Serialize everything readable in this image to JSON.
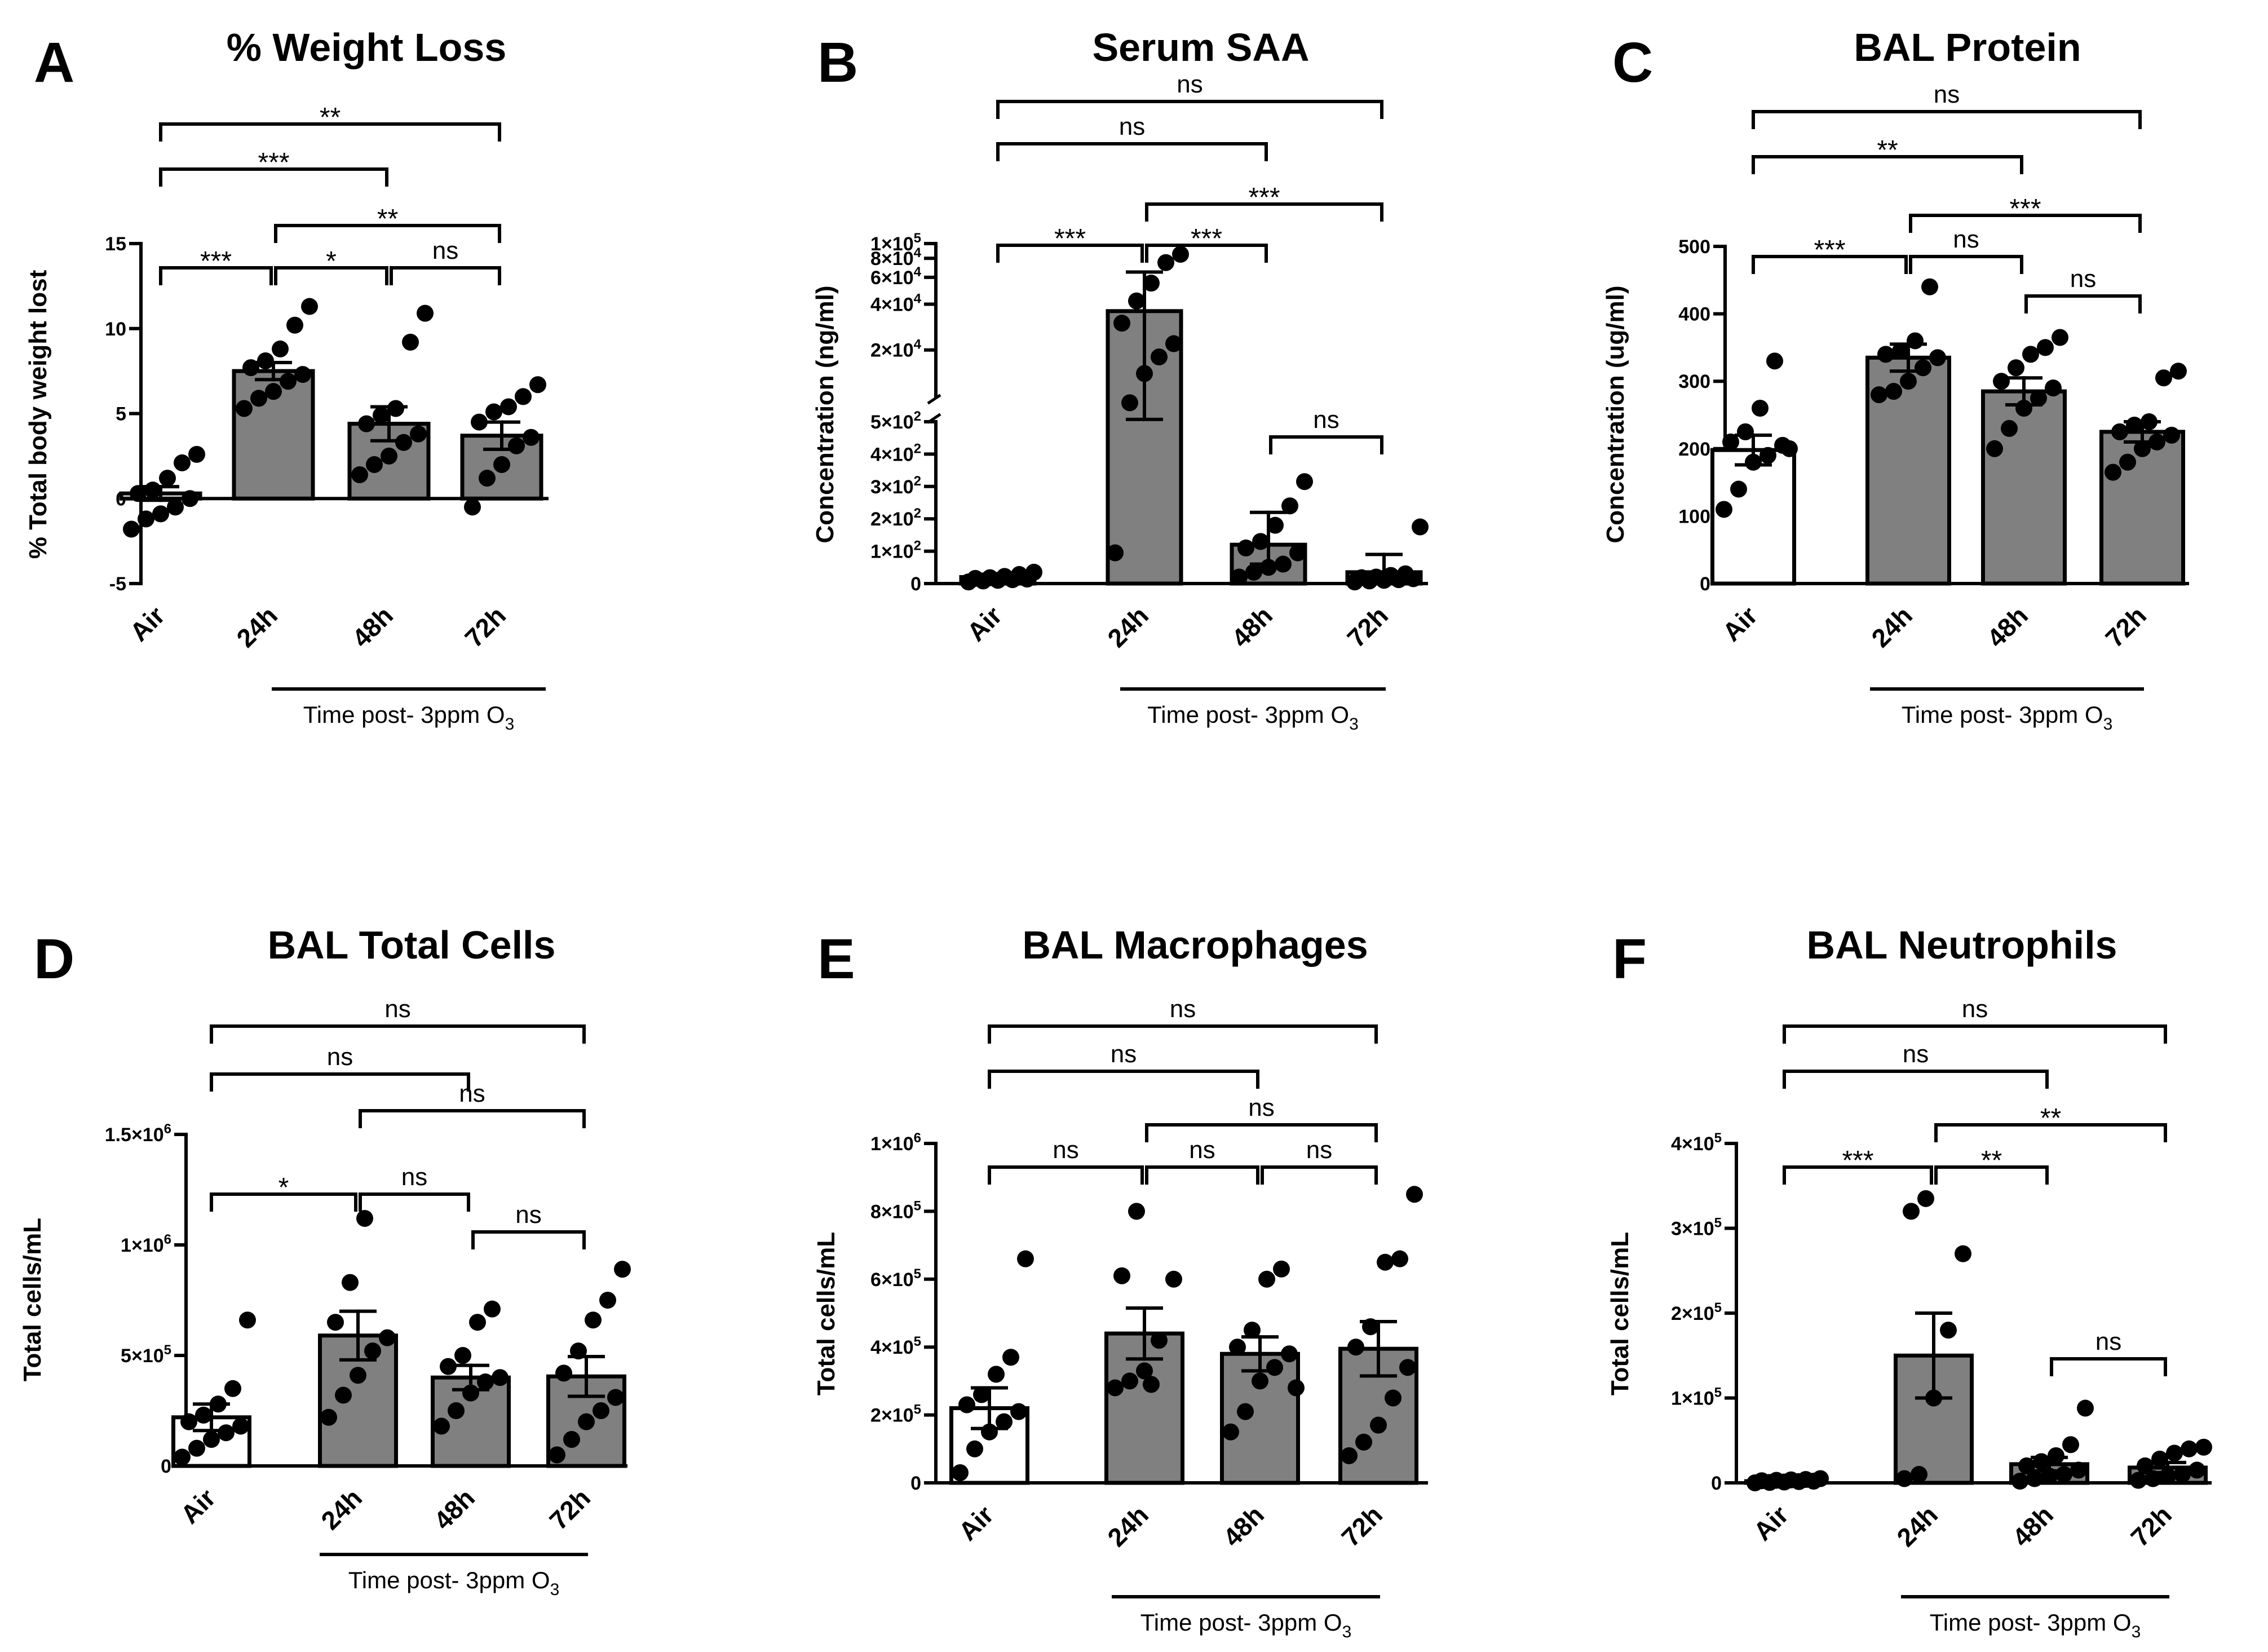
{
  "figure": {
    "time_label": "Time post- 3ppm O",
    "time_subscript": "3"
  },
  "chart_data": [
    {
      "panel": "A",
      "type": "bar",
      "title": "% Weight Loss",
      "ylabel": "% Total body weight lost",
      "categories": [
        "Air",
        "24h",
        "48h",
        "72h"
      ],
      "bar_colors": [
        "#ffffff",
        "#808080",
        "#808080",
        "#808080"
      ],
      "y_scale": "linear",
      "ylim": [
        -5,
        15
      ],
      "yticks": [
        {
          "v": -5,
          "label": "-5"
        },
        {
          "v": 0,
          "label": "0"
        },
        {
          "v": 5,
          "label": "5"
        },
        {
          "v": 10,
          "label": "10"
        },
        {
          "v": 15,
          "label": "15"
        }
      ],
      "means": [
        0.3,
        7.5,
        4.4,
        3.7
      ],
      "sem": [
        0.4,
        0.5,
        1.0,
        0.8
      ],
      "points": [
        [
          -1.8,
          -1.2,
          -0.9,
          -0.5,
          0.0,
          0.3,
          0.5,
          1.2,
          2.1,
          2.6
        ],
        [
          5.3,
          5.9,
          6.3,
          6.9,
          7.3,
          7.7,
          8.1,
          8.8,
          10.2,
          11.3
        ],
        [
          1.4,
          2.0,
          2.5,
          3.3,
          3.8,
          4.4,
          4.9,
          5.3,
          9.2,
          10.9
        ],
        [
          -0.5,
          1.2,
          2.0,
          3.1,
          3.6,
          4.5,
          5.1,
          5.4,
          6.0,
          6.7
        ]
      ],
      "comparisons": [
        {
          "a": 0,
          "b": 1,
          "label": "***",
          "level": 1
        },
        {
          "a": 1,
          "b": 2,
          "label": "*",
          "level": 1
        },
        {
          "a": 2,
          "b": 3,
          "label": "ns",
          "level": 1
        },
        {
          "a": 1,
          "b": 3,
          "label": "**",
          "level": 2
        },
        {
          "a": 0,
          "b": 2,
          "label": "***",
          "level": 3
        },
        {
          "a": 0,
          "b": 3,
          "label": "**",
          "level": 4
        }
      ]
    },
    {
      "panel": "B",
      "type": "bar",
      "title": "Serum SAA",
      "ylabel": "Concentration (ng/ml)",
      "categories": [
        "Air",
        "24h",
        "48h",
        "72h"
      ],
      "bar_colors": [
        "#ffffff",
        "#808080",
        "#808080",
        "#808080"
      ],
      "y_scale": "broken",
      "y_segments": [
        {
          "range": [
            0,
            500
          ]
        },
        {
          "range": [
            10000,
            100000
          ],
          "scale": "log"
        }
      ],
      "yticks": [
        {
          "v": 0,
          "label": "0"
        },
        {
          "v": 100,
          "mant": "1",
          "exp": "2"
        },
        {
          "v": 200,
          "mant": "2",
          "exp": "2"
        },
        {
          "v": 300,
          "mant": "3",
          "exp": "2"
        },
        {
          "v": 400,
          "mant": "4",
          "exp": "2"
        },
        {
          "v": 500,
          "mant": "5",
          "exp": "2"
        },
        {
          "v": 20000,
          "mant": "2",
          "exp": "4"
        },
        {
          "v": 40000,
          "mant": "4",
          "exp": "4"
        },
        {
          "v": 60000,
          "mant": "6",
          "exp": "4"
        },
        {
          "v": 80000,
          "mant": "8",
          "exp": "4"
        },
        {
          "v": 100000,
          "mant": "1",
          "exp": "5"
        }
      ],
      "means": [
        20,
        36000,
        120,
        35
      ],
      "sem_low": [
        15,
        7000,
        60,
        15
      ],
      "sem_high": [
        25,
        65000,
        220,
        90
      ],
      "points": [
        [
          5,
          8,
          10,
          12,
          14,
          16,
          18,
          22,
          28,
          35
        ],
        [
          95,
          9000,
          14000,
          18000,
          22000,
          30000,
          42000,
          55000,
          75000,
          85000
        ],
        [
          20,
          35,
          50,
          60,
          95,
          110,
          130,
          180,
          240,
          315
        ],
        [
          5,
          8,
          10,
          12,
          15,
          18,
          20,
          25,
          30,
          175
        ]
      ],
      "comparisons": [
        {
          "a": 0,
          "b": 1,
          "label": "***",
          "level": 1
        },
        {
          "a": 1,
          "b": 2,
          "label": "***",
          "level": 1
        },
        {
          "a": 2,
          "b": 3,
          "label": "ns",
          "level": 0
        },
        {
          "a": 1,
          "b": 3,
          "label": "***",
          "level": 2
        },
        {
          "a": 0,
          "b": 2,
          "label": "ns",
          "level": 3
        },
        {
          "a": 0,
          "b": 3,
          "label": "ns",
          "level": 4
        }
      ]
    },
    {
      "panel": "C",
      "type": "bar",
      "title": "BAL Protein",
      "ylabel": "Concentration (ug/ml)",
      "categories": [
        "Air",
        "24h",
        "48h",
        "72h"
      ],
      "bar_colors": [
        "#ffffff",
        "#808080",
        "#808080",
        "#808080"
      ],
      "y_scale": "linear",
      "ylim": [
        0,
        500
      ],
      "yticks": [
        {
          "v": 0,
          "label": "0"
        },
        {
          "v": 100,
          "label": "100"
        },
        {
          "v": 200,
          "label": "200"
        },
        {
          "v": 300,
          "label": "300"
        },
        {
          "v": 400,
          "label": "400"
        },
        {
          "v": 500,
          "label": "500"
        }
      ],
      "means": [
        198,
        335,
        285,
        225
      ],
      "sem": [
        22,
        20,
        20,
        15
      ],
      "points": [
        [
          110,
          140,
          180,
          190,
          205,
          210,
          225,
          260,
          330,
          200
        ],
        [
          280,
          285,
          300,
          320,
          335,
          340,
          345,
          360,
          440
        ],
        [
          200,
          230,
          260,
          275,
          290,
          300,
          320,
          340,
          350,
          365
        ],
        [
          165,
          180,
          200,
          210,
          220,
          225,
          235,
          240,
          305,
          315
        ]
      ],
      "comparisons": [
        {
          "a": 0,
          "b": 1,
          "label": "***",
          "level": 1
        },
        {
          "a": 1,
          "b": 2,
          "label": "ns",
          "level": 1
        },
        {
          "a": 2,
          "b": 3,
          "label": "ns",
          "level": 0
        },
        {
          "a": 1,
          "b": 3,
          "label": "***",
          "level": 2
        },
        {
          "a": 0,
          "b": 2,
          "label": "**",
          "level": 3
        },
        {
          "a": 0,
          "b": 3,
          "label": "ns",
          "level": 4
        }
      ]
    },
    {
      "panel": "D",
      "type": "bar",
      "title": "BAL Total Cells",
      "ylabel": "Total cells/mL",
      "categories": [
        "Air",
        "24h",
        "48h",
        "72h"
      ],
      "bar_colors": [
        "#ffffff",
        "#808080",
        "#808080",
        "#808080"
      ],
      "y_scale": "linear",
      "ylim": [
        0,
        1500000
      ],
      "yticks": [
        {
          "v": 0,
          "label": "0"
        },
        {
          "v": 500000,
          "mant": "5",
          "exp": "5"
        },
        {
          "v": 1000000,
          "mant": "1",
          "exp": "6"
        },
        {
          "v": 1500000,
          "mant": "1.5",
          "exp": "6"
        }
      ],
      "means": [
        220000,
        590000,
        400000,
        405000
      ],
      "sem": [
        60000,
        110000,
        55000,
        90000
      ],
      "points": [
        [
          40000,
          80000,
          120000,
          150000,
          180000,
          200000,
          230000,
          280000,
          350000,
          660000
        ],
        [
          220000,
          320000,
          410000,
          520000,
          580000,
          650000,
          830000,
          1120000
        ],
        [
          180000,
          250000,
          330000,
          380000,
          400000,
          450000,
          500000,
          650000,
          710000
        ],
        [
          50000,
          120000,
          200000,
          250000,
          310000,
          420000,
          520000,
          660000,
          750000,
          890000
        ]
      ],
      "comparisons": [
        {
          "a": 0,
          "b": 1,
          "label": "*",
          "level": 1
        },
        {
          "a": 1,
          "b": 2,
          "label": "ns",
          "level": 1
        },
        {
          "a": 2,
          "b": 3,
          "label": "ns",
          "level": 0
        },
        {
          "a": 1,
          "b": 3,
          "label": "ns",
          "level": 2
        },
        {
          "a": 0,
          "b": 2,
          "label": "ns",
          "level": 3
        },
        {
          "a": 0,
          "b": 3,
          "label": "ns",
          "level": 4
        }
      ]
    },
    {
      "panel": "E",
      "type": "bar",
      "title": "BAL Macrophages",
      "ylabel": "Total cells/mL",
      "categories": [
        "Air",
        "24h",
        "48h",
        "72h"
      ],
      "bar_colors": [
        "#ffffff",
        "#808080",
        "#808080",
        "#808080"
      ],
      "y_scale": "linear",
      "ylim": [
        0,
        1000000
      ],
      "yticks": [
        {
          "v": 0,
          "label": "0"
        },
        {
          "v": 200000,
          "mant": "2",
          "exp": "5"
        },
        {
          "v": 400000,
          "mant": "4",
          "exp": "5"
        },
        {
          "v": 600000,
          "mant": "6",
          "exp": "5"
        },
        {
          "v": 800000,
          "mant": "8",
          "exp": "5"
        },
        {
          "v": 1000000,
          "mant": "1",
          "exp": "6"
        }
      ],
      "means": [
        220000,
        440000,
        380000,
        395000
      ],
      "sem": [
        60000,
        75000,
        50000,
        80000
      ],
      "points": [
        [
          30000,
          100000,
          150000,
          180000,
          210000,
          230000,
          260000,
          320000,
          370000,
          660000
        ],
        [
          280000,
          300000,
          330000,
          420000,
          600000,
          610000,
          800000,
          290000
        ],
        [
          150000,
          210000,
          300000,
          340000,
          380000,
          400000,
          450000,
          600000,
          630000,
          280000
        ],
        [
          80000,
          120000,
          170000,
          250000,
          340000,
          400000,
          460000,
          650000,
          660000,
          850000
        ]
      ],
      "comparisons": [
        {
          "a": 0,
          "b": 1,
          "label": "ns",
          "level": 1
        },
        {
          "a": 1,
          "b": 2,
          "label": "ns",
          "level": 1
        },
        {
          "a": 2,
          "b": 3,
          "label": "ns",
          "level": 1
        },
        {
          "a": 1,
          "b": 3,
          "label": "ns",
          "level": 2
        },
        {
          "a": 0,
          "b": 2,
          "label": "ns",
          "level": 3
        },
        {
          "a": 0,
          "b": 3,
          "label": "ns",
          "level": 4
        }
      ]
    },
    {
      "panel": "F",
      "type": "bar",
      "title": "BAL Neutrophils",
      "ylabel": "Total cells/mL",
      "categories": [
        "Air",
        "24h",
        "48h",
        "72h"
      ],
      "bar_colors": [
        "#ffffff",
        "#808080",
        "#808080",
        "#808080"
      ],
      "y_scale": "linear",
      "ylim": [
        0,
        400000
      ],
      "yticks": [
        {
          "v": 0,
          "label": "0"
        },
        {
          "v": 100000,
          "mant": "1",
          "exp": "5"
        },
        {
          "v": 200000,
          "mant": "2",
          "exp": "5"
        },
        {
          "v": 300000,
          "mant": "3",
          "exp": "5"
        },
        {
          "v": 400000,
          "mant": "4",
          "exp": "5"
        }
      ],
      "means": [
        2000,
        150000,
        22000,
        18000
      ],
      "sem": [
        1000,
        50000,
        8000,
        6000
      ],
      "points": [
        [
          0,
          500,
          1000,
          1500,
          2000,
          2500,
          3000,
          3500,
          4000,
          5000
        ],
        [
          5000,
          10000,
          100000,
          180000,
          270000,
          320000,
          335000
        ],
        [
          2000,
          5000,
          8000,
          10000,
          15000,
          20000,
          25000,
          32000,
          45000,
          88000
        ],
        [
          3000,
          5000,
          8000,
          10000,
          15000,
          20000,
          28000,
          35000,
          40000,
          42000
        ]
      ],
      "comparisons": [
        {
          "a": 0,
          "b": 1,
          "label": "***",
          "level": 1
        },
        {
          "a": 1,
          "b": 2,
          "label": "**",
          "level": 1
        },
        {
          "a": 2,
          "b": 3,
          "label": "ns",
          "level": 0
        },
        {
          "a": 1,
          "b": 3,
          "label": "**",
          "level": 2
        },
        {
          "a": 0,
          "b": 2,
          "label": "ns",
          "level": 3
        },
        {
          "a": 0,
          "b": 3,
          "label": "ns",
          "level": 4
        }
      ]
    }
  ]
}
